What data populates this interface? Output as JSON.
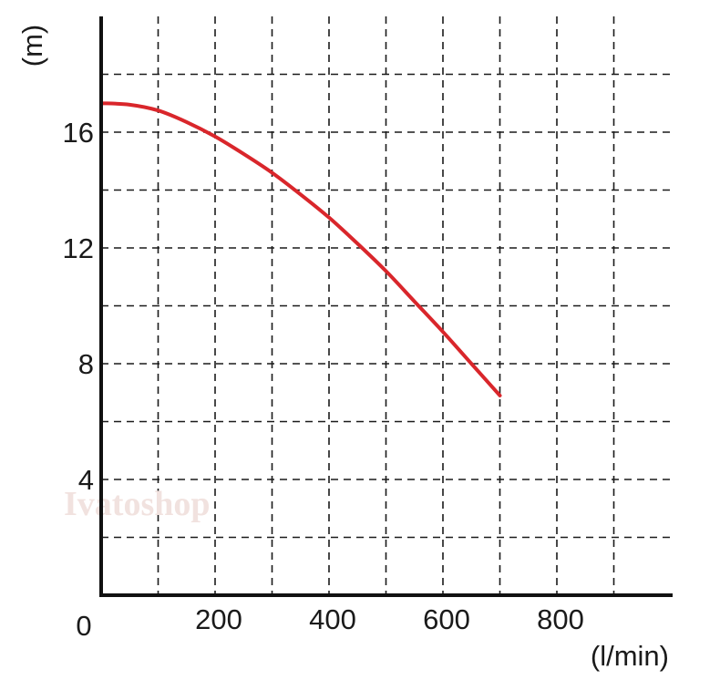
{
  "chart_data": {
    "type": "line",
    "title": "",
    "xlabel": "(l/min)",
    "ylabel": "(m)",
    "xlim": [
      0,
      1000
    ],
    "ylim": [
      0,
      20
    ],
    "x_ticks": [
      0,
      200,
      400,
      600,
      800
    ],
    "x_tick_labels": [
      "0",
      "200",
      "400",
      "600",
      "800"
    ],
    "y_ticks": [
      4,
      8,
      12,
      16
    ],
    "y_tick_labels": [
      "4",
      "8",
      "12",
      "16"
    ],
    "x_grid": [
      100,
      200,
      300,
      400,
      500,
      600,
      700,
      800,
      900
    ],
    "y_grid": [
      2,
      4,
      6,
      8,
      10,
      12,
      14,
      16,
      18
    ],
    "grid": true,
    "grid_style": "dashed",
    "series": [
      {
        "color": "#d9262b",
        "x": [
          0,
          50,
          100,
          150,
          200,
          250,
          300,
          350,
          400,
          450,
          500,
          550,
          600,
          650,
          700
        ],
        "y": [
          17.0,
          16.95,
          16.75,
          16.35,
          15.85,
          15.25,
          14.6,
          13.85,
          13.05,
          12.15,
          11.2,
          10.15,
          9.1,
          8.0,
          6.9
        ]
      }
    ]
  },
  "watermark": "Ivatoshop"
}
